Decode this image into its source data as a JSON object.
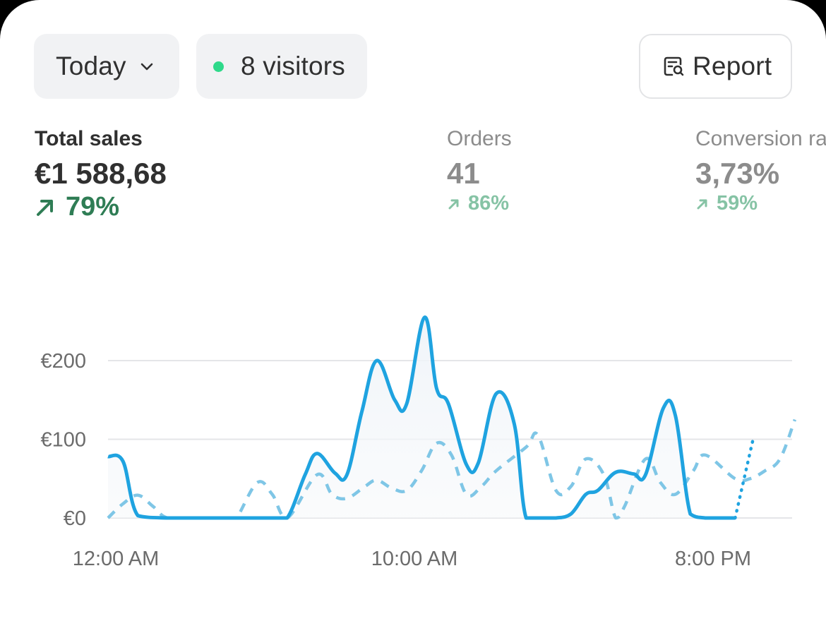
{
  "filters": {
    "range_label": "Today",
    "visitors_label": "8 visitors",
    "report_label": "Report"
  },
  "metrics": [
    {
      "label": "Total sales",
      "value": "€1 588,68",
      "change": "79%",
      "active": true
    },
    {
      "label": "Orders",
      "value": "41",
      "change": "86%",
      "active": false
    },
    {
      "label": "Conversion rate",
      "value": "3,73%",
      "change": "59%",
      "active": false
    }
  ],
  "colors": {
    "series_current": "#1fa3e0",
    "series_previous": "#7fc6e6",
    "positive_change": "#2f7d55",
    "live_dot": "#2fd98a"
  },
  "chart_data": {
    "type": "line",
    "y_ticks": [
      "€0",
      "€100",
      "€200"
    ],
    "ylim": [
      0,
      250
    ],
    "x_tick_labels": [
      "12:00 AM",
      "10:00 AM",
      "8:00 PM"
    ],
    "x_tick_hours": [
      0,
      10,
      20
    ],
    "grid": true,
    "series": [
      {
        "style": "solid",
        "x": [
          0,
          0.5,
          1,
          2,
          3,
          4,
          5,
          5.5,
          6,
          6.6,
          7,
          7.6,
          8,
          8.5,
          9,
          9.6,
          10,
          10.6,
          11,
          11.4,
          12,
          12.4,
          13,
          13.6,
          14,
          14.6,
          15,
          15.5,
          16,
          16.4,
          17,
          17.6,
          18,
          18.6,
          19,
          19.5,
          20,
          20.6,
          21
        ],
        "values": [
          78,
          72,
          3,
          0,
          0,
          0,
          0,
          0,
          0,
          55,
          82,
          57,
          55,
          135,
          200,
          150,
          145,
          255,
          165,
          145,
          68,
          70,
          158,
          120,
          0,
          0,
          0,
          5,
          30,
          35,
          58,
          56,
          55,
          140,
          130,
          5,
          0,
          0,
          0
        ]
      },
      {
        "style": "dotted",
        "x": [
          21,
          21.6
        ],
        "values": [
          0,
          100
        ]
      },
      {
        "style": "dashed",
        "x": [
          0,
          0.5,
          1,
          1.5,
          2,
          3,
          4,
          4.3,
          5,
          5.5,
          6,
          7,
          7.5,
          8,
          8.6,
          9,
          9.5,
          10,
          10.5,
          11,
          11.5,
          12,
          12.5,
          13,
          14,
          14.4,
          15,
          15.5,
          16,
          16.6,
          17,
          17.3,
          18,
          18.5,
          19,
          19.6,
          20,
          21,
          21.5,
          22,
          22.5,
          23
        ],
        "values": [
          0,
          18,
          29,
          15,
          0,
          0,
          0,
          0,
          45,
          30,
          0,
          55,
          30,
          25,
          40,
          48,
          38,
          35,
          60,
          95,
          80,
          30,
          40,
          60,
          90,
          105,
          35,
          40,
          75,
          55,
          0,
          15,
          75,
          45,
          30,
          60,
          80,
          50,
          50,
          60,
          75,
          125
        ]
      }
    ]
  }
}
